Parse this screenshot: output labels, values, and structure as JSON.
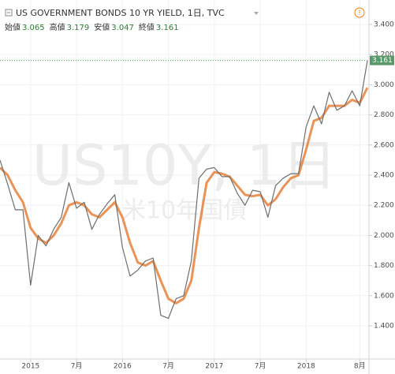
{
  "chart_data": {
    "type": "line",
    "title": "US GOVERNMENT BONDS 10 YR YIELD, 1日, TVC",
    "ohlc": [
      {
        "label": "始値",
        "value": 3.065
      },
      {
        "label": "高値",
        "value": 3.179
      },
      {
        "label": "安値",
        "value": 3.047
      },
      {
        "label": "終値",
        "value": 3.161
      }
    ],
    "watermark": "US10Y, 1日",
    "watermark_subtitle": "米10年国債",
    "x": [
      "2014-09",
      "2014-10",
      "2014-11",
      "2014-12",
      "2015-01",
      "2015-02",
      "2015-03",
      "2015-04",
      "2015-05",
      "2015-06",
      "2015-07",
      "2015-08",
      "2015-09",
      "2015-10",
      "2015-11",
      "2015-12",
      "2016-01",
      "2016-02",
      "2016-03",
      "2016-04",
      "2016-05",
      "2016-06",
      "2016-07",
      "2016-08",
      "2016-09",
      "2016-10",
      "2016-11",
      "2016-12",
      "2017-01",
      "2017-02",
      "2017-03",
      "2017-04",
      "2017-05",
      "2017-06",
      "2017-07",
      "2017-08",
      "2017-09",
      "2017-10",
      "2017-11",
      "2017-12",
      "2018-01",
      "2018-02",
      "2018-03",
      "2018-04",
      "2018-05",
      "2018-06",
      "2018-07",
      "2018-08",
      "2018-09"
    ],
    "series": [
      {
        "color": "#6e6e6e",
        "values": [
          2.5,
          2.34,
          2.17,
          2.17,
          1.67,
          2.0,
          1.93,
          2.04,
          2.12,
          2.35,
          2.18,
          2.22,
          2.04,
          2.14,
          2.21,
          2.27,
          1.92,
          1.73,
          1.77,
          1.83,
          1.85,
          1.47,
          1.45,
          1.58,
          1.6,
          1.83,
          2.38,
          2.44,
          2.45,
          2.39,
          2.39,
          2.28,
          2.2,
          2.3,
          2.29,
          2.12,
          2.33,
          2.38,
          2.41,
          2.41,
          2.72,
          2.86,
          2.74,
          2.95,
          2.83,
          2.86,
          2.96,
          2.86,
          3.161
        ]
      },
      {
        "color": "#e8803a",
        "values": [
          2.45,
          2.4,
          2.3,
          2.22,
          2.05,
          1.98,
          1.95,
          2.0,
          2.08,
          2.2,
          2.22,
          2.2,
          2.14,
          2.12,
          2.17,
          2.22,
          2.12,
          1.95,
          1.82,
          1.8,
          1.83,
          1.7,
          1.58,
          1.55,
          1.58,
          1.7,
          2.05,
          2.35,
          2.42,
          2.41,
          2.39,
          2.33,
          2.27,
          2.26,
          2.27,
          2.2,
          2.24,
          2.32,
          2.38,
          2.4,
          2.57,
          2.76,
          2.78,
          2.86,
          2.86,
          2.86,
          2.9,
          2.88,
          2.98
        ]
      }
    ],
    "xlim": [
      "2014-09",
      "2018-09"
    ],
    "xticks": [
      {
        "value": "2015-01",
        "label": "2015"
      },
      {
        "value": "2015-07",
        "label": "7月"
      },
      {
        "value": "2016-01",
        "label": "2016"
      },
      {
        "value": "2016-07",
        "label": "7月"
      },
      {
        "value": "2017-01",
        "label": "2017"
      },
      {
        "value": "2017-07",
        "label": "7月"
      },
      {
        "value": "2018-01",
        "label": "2018"
      },
      {
        "value": "2018-08",
        "label": "8月"
      }
    ],
    "ylim": [
      1.18,
      3.562
    ],
    "yticks": [
      {
        "value": 1.4,
        "label": "1.400"
      },
      {
        "value": 1.6,
        "label": "1.600"
      },
      {
        "value": 1.8,
        "label": "1.800"
      },
      {
        "value": 2.0,
        "label": "2.000"
      },
      {
        "value": 2.2,
        "label": "2.200"
      },
      {
        "value": 2.4,
        "label": "2.400"
      },
      {
        "value": 2.6,
        "label": "2.600"
      },
      {
        "value": 2.8,
        "label": "2.800"
      },
      {
        "value": 3.0,
        "label": "3.000"
      },
      {
        "value": 3.2,
        "label": "3.200"
      },
      {
        "value": 3.4,
        "label": "3.400"
      }
    ],
    "grid": true
  }
}
